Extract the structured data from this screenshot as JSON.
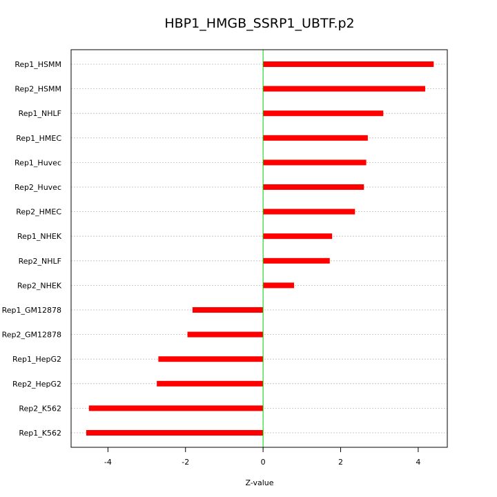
{
  "chart_data": {
    "type": "bar",
    "orientation": "horizontal",
    "title": "HBP1_HMGB_SSRP1_UBTF.p2",
    "xlabel": "Z-value",
    "ylabel": "",
    "xlim": [
      -4.95,
      4.75
    ],
    "xticks": [
      -4,
      -2,
      0,
      2,
      4
    ],
    "xtick_labels": [
      "-4",
      "-2",
      "0",
      "2",
      "4"
    ],
    "grid": "horizontal dotted",
    "reference_line": 0,
    "categories": [
      "Rep1_HSMM",
      "Rep2_HSMM",
      "Rep1_NHLF",
      "Rep1_HMEC",
      "Rep1_Huvec",
      "Rep2_Huvec",
      "Rep2_HMEC",
      "Rep1_NHEK",
      "Rep2_NHLF",
      "Rep2_NHEK",
      "Rep1_GM12878",
      "Rep2_GM12878",
      "Rep1_HepG2",
      "Rep2_HepG2",
      "Rep2_K562",
      "Rep1_K562"
    ],
    "values": [
      4.4,
      4.18,
      3.1,
      2.7,
      2.66,
      2.6,
      2.37,
      1.78,
      1.72,
      0.8,
      -1.82,
      -1.95,
      -2.7,
      -2.74,
      -4.49,
      -4.56
    ],
    "colors": {
      "bar": "#ff0000",
      "reference_line": "#00cc00",
      "grid": "#bbbbbb",
      "frame": "#000000"
    }
  }
}
